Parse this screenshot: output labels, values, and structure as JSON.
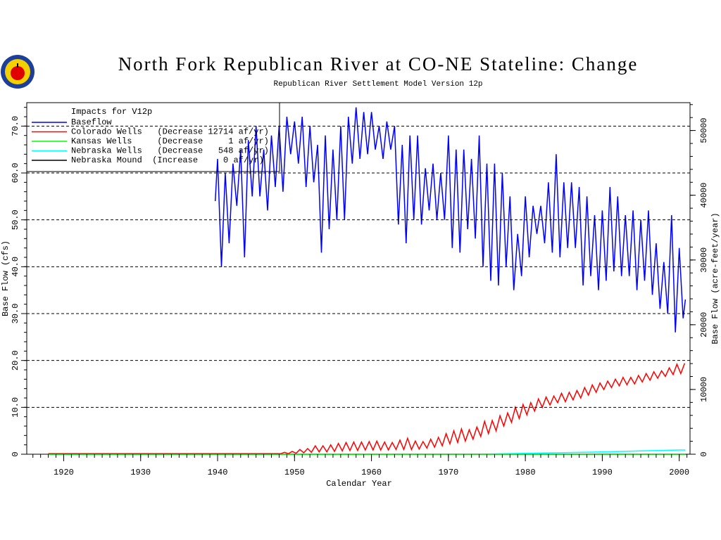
{
  "chart_data": {
    "type": "line",
    "title": "North Fork Republican River at CO-NE Stateline: Change",
    "subtitle": "Republican River Settlement Model Version 12p",
    "xlabel": "Calendar Year",
    "ylabel": "Base Flow (cfs)",
    "y2label": "Base Flow (acre-feet/year)",
    "legend_title": "Impacts for V12p",
    "legend": "upper left",
    "grid": true,
    "xlim": [
      1915.2,
      2001.4
    ],
    "xticks": [
      1920,
      1930,
      1940,
      1950,
      1960,
      1970,
      1980,
      1990,
      2000
    ],
    "ylim": [
      0,
      75
    ],
    "yticks": [
      0,
      {
        "value": 10,
        "label": "10.0"
      },
      {
        "value": 20,
        "label": "20.0"
      },
      {
        "value": 30,
        "label": "30.0"
      },
      {
        "value": 40,
        "label": "40.0"
      },
      {
        "value": 50,
        "label": "50.0"
      },
      {
        "value": 60,
        "label": "60.0"
      },
      {
        "value": 70,
        "label": "70.0"
      }
    ],
    "y2lim": [
      0,
      54300
    ],
    "y2ticks": [
      0,
      10000,
      20000,
      30000,
      40000,
      50000
    ],
    "series": [
      {
        "name": "Baseflow",
        "color": "#0000ff",
        "x": [
          1939.7,
          1940,
          1940.5,
          1941,
          1941.5,
          1942,
          1942.5,
          1943,
          1943.5,
          1944,
          1944.5,
          1945,
          1945.5,
          1946,
          1946.5,
          1947,
          1947.5,
          1948,
          1948.5,
          1949,
          1949.5,
          1950,
          1950.5,
          1951,
          1951.5,
          1952,
          1952.5,
          1953,
          1953.5,
          1954,
          1954.5,
          1955,
          1955.5,
          1956,
          1956.5,
          1957,
          1957.5,
          1958,
          1958.5,
          1959,
          1959.5,
          1960,
          1960.5,
          1961,
          1961.5,
          1962,
          1962.5,
          1963,
          1963.5,
          1964,
          1964.5,
          1965,
          1965.5,
          1966,
          1966.5,
          1967,
          1967.5,
          1968,
          1968.5,
          1969,
          1969.5,
          1970,
          1970.5,
          1971,
          1971.5,
          1972,
          1972.5,
          1973,
          1973.5,
          1974,
          1974.5,
          1975,
          1975.5,
          1976,
          1976.5,
          1977,
          1977.5,
          1978,
          1978.5,
          1979,
          1979.5,
          1980,
          1980.5,
          1981,
          1981.5,
          1982,
          1982.5,
          1983,
          1983.5,
          1984,
          1984.5,
          1985,
          1985.5,
          1986,
          1986.5,
          1987,
          1987.5,
          1988,
          1988.5,
          1989,
          1989.5,
          1990,
          1990.5,
          1991,
          1991.5,
          1992,
          1992.5,
          1993,
          1993.5,
          1994,
          1994.5,
          1995,
          1995.5,
          1996,
          1996.5,
          1997,
          1997.5,
          1998,
          1998.5,
          1999,
          1999.5,
          2000,
          2000.5,
          2000.8
        ],
        "values": [
          54,
          63,
          40,
          60,
          45,
          62,
          53,
          65,
          42,
          67,
          55,
          70,
          55,
          65,
          52,
          68,
          57,
          70,
          56,
          72,
          64,
          71,
          62,
          72,
          57,
          70,
          58,
          66,
          43,
          68,
          48,
          65,
          50,
          70,
          50,
          72,
          62,
          74,
          63,
          73,
          64,
          73,
          65,
          70,
          63,
          71,
          65,
          70,
          49,
          66,
          45,
          68,
          50,
          68,
          49,
          61,
          52,
          62,
          50,
          60,
          50,
          68,
          44,
          65,
          43,
          65,
          48,
          63,
          46,
          68,
          40,
          62,
          37,
          62,
          36,
          60,
          40,
          55,
          35,
          47,
          38,
          55,
          42,
          53,
          47,
          53,
          45,
          58,
          43,
          64,
          42,
          58,
          44,
          58,
          44,
          57,
          36,
          55,
          38,
          51,
          35,
          52,
          37,
          57,
          39,
          55,
          38,
          51,
          38,
          52,
          35,
          50,
          37,
          52,
          34,
          45,
          31,
          41,
          30,
          51,
          26,
          44,
          29,
          33
        ]
      },
      {
        "name": "Colorado Wells   (Decrease 12714 af/yr)",
        "color": "#ff0000",
        "x": [
          1918,
          1947.5,
          1948.2,
          1948.7,
          1949.2,
          1949.7,
          1950.2,
          1950.7,
          1951.2,
          1951.7,
          1952.2,
          1952.7,
          1953.2,
          1953.7,
          1954.2,
          1954.7,
          1955.2,
          1955.7,
          1956.2,
          1956.7,
          1957.2,
          1957.7,
          1958.2,
          1958.7,
          1959.2,
          1959.7,
          1960.2,
          1960.7,
          1961.2,
          1961.7,
          1962.2,
          1962.7,
          1963.2,
          1963.7,
          1964.2,
          1964.7,
          1965.2,
          1965.7,
          1966.2,
          1966.7,
          1967.2,
          1967.7,
          1968.2,
          1968.7,
          1969.2,
          1969.7,
          1970.2,
          1970.7,
          1971.2,
          1971.7,
          1972.2,
          1972.7,
          1973.2,
          1973.7,
          1974.2,
          1974.7,
          1975.2,
          1975.7,
          1976.2,
          1976.7,
          1977.2,
          1977.7,
          1978.2,
          1978.7,
          1979.2,
          1979.7,
          1980.2,
          1980.7,
          1981.2,
          1981.7,
          1982.2,
          1982.7,
          1983.2,
          1983.7,
          1984.2,
          1984.7,
          1985.2,
          1985.7,
          1986.2,
          1986.7,
          1987.2,
          1987.7,
          1988.2,
          1988.7,
          1989.2,
          1989.7,
          1990.2,
          1990.7,
          1991.2,
          1991.7,
          1992.2,
          1992.7,
          1993.2,
          1993.7,
          1994.2,
          1994.7,
          1995.2,
          1995.7,
          1996.2,
          1996.7,
          1997.2,
          1997.7,
          1998.2,
          1998.7,
          1999.2,
          1999.7,
          2000.2,
          2000.7
        ],
        "values": [
          0.1,
          0.1,
          0.1,
          0.4,
          0.1,
          0.6,
          0.2,
          1.0,
          0.3,
          1.2,
          0.4,
          1.8,
          0.5,
          1.8,
          0.5,
          2.0,
          0.6,
          2.3,
          0.7,
          2.5,
          0.8,
          2.6,
          0.8,
          2.6,
          0.9,
          2.7,
          0.9,
          2.8,
          0.9,
          2.6,
          0.9,
          2.5,
          1.0,
          3.0,
          1.0,
          3.4,
          1.0,
          2.8,
          1.1,
          2.7,
          1.3,
          3.2,
          1.5,
          3.6,
          1.8,
          4.4,
          2.2,
          5.0,
          2.5,
          5.4,
          2.8,
          5.2,
          3.2,
          5.8,
          3.8,
          7.0,
          4.4,
          7.2,
          5.0,
          8.2,
          6.0,
          8.8,
          6.8,
          10.0,
          7.6,
          10.6,
          8.4,
          11.0,
          9.2,
          11.8,
          10.0,
          12.2,
          10.5,
          12.4,
          11.0,
          13.0,
          11.2,
          13.2,
          11.6,
          13.6,
          12.0,
          14.2,
          12.6,
          14.8,
          13.2,
          15.2,
          13.8,
          15.6,
          14.2,
          16.0,
          14.6,
          16.4,
          14.8,
          16.4,
          15.0,
          16.8,
          15.4,
          17.2,
          15.8,
          17.6,
          16.2,
          17.8,
          16.6,
          18.4,
          17.0,
          19.2,
          17.2,
          19.4
        ]
      },
      {
        "name": "Kansas Wells     (Decrease     1 af/yr)",
        "color": "#00ff00",
        "x": [
          1918,
          2000.8
        ],
        "values": [
          0,
          0.02
        ]
      },
      {
        "name": "Nebraska Wells   (Decrease   548 af/yr)",
        "color": "#00ffff",
        "x": [
          1918,
          1975,
          1980,
          1985,
          1990,
          1995,
          2000,
          2000.8
        ],
        "values": [
          0,
          0.05,
          0.2,
          0.35,
          0.5,
          0.7,
          0.9,
          0.9
        ]
      },
      {
        "name": "Nebraska Mound  (Increase     0 af/yr)",
        "color": "#000000",
        "x": [
          1918,
          2000.8
        ],
        "values": [
          0,
          0
        ]
      }
    ]
  }
}
